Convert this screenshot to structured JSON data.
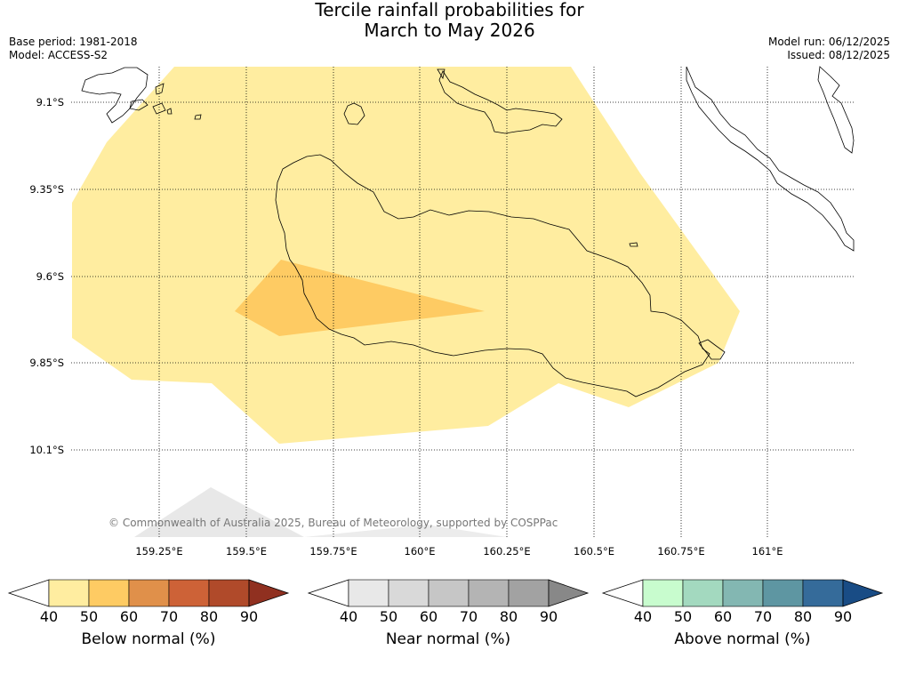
{
  "title": {
    "line1": "Tercile rainfall probabilities for",
    "line2": "March to May 2026"
  },
  "meta": {
    "base_period": "Base period: 1981-2018",
    "model": "Model: ACCESS-S2",
    "model_run": "Model run: 06/12/2025",
    "issued": "Issued: 08/12/2025"
  },
  "lat_labels": [
    "9.1°S",
    "9.35°S",
    "9.6°S",
    "9.85°S",
    "10.1°S"
  ],
  "lon_labels": [
    "159.25°E",
    "159.5°E",
    "159.75°E",
    "160°E",
    "160.25°E",
    "160.5°E",
    "160.75°E",
    "161°E"
  ],
  "credit": "© Commonwealth of Australia 2025, Bureau of Meteorology, supported by COSPPac",
  "colorbars": [
    {
      "label": "Below normal (%)",
      "ticks": [
        "40",
        "50",
        "60",
        "70",
        "80",
        "90"
      ],
      "colors": [
        "#ffeda0",
        "#fecb63",
        "#e0904a",
        "#cd6237",
        "#b04a2a",
        "#903020"
      ]
    },
    {
      "label": "Near normal (%)",
      "ticks": [
        "40",
        "50",
        "60",
        "70",
        "80",
        "90"
      ],
      "colors": [
        "#e8e8e8",
        "#d9d9d9",
        "#c6c6c6",
        "#b4b4b4",
        "#a2a2a2",
        "#888888"
      ]
    },
    {
      "label": "Above normal (%)",
      "ticks": [
        "40",
        "50",
        "60",
        "70",
        "80",
        "90"
      ],
      "colors": [
        "#c8fcce",
        "#a3d9bf",
        "#83b7b2",
        "#5e96a2",
        "#356b9a",
        "#194c85"
      ]
    }
  ]
}
